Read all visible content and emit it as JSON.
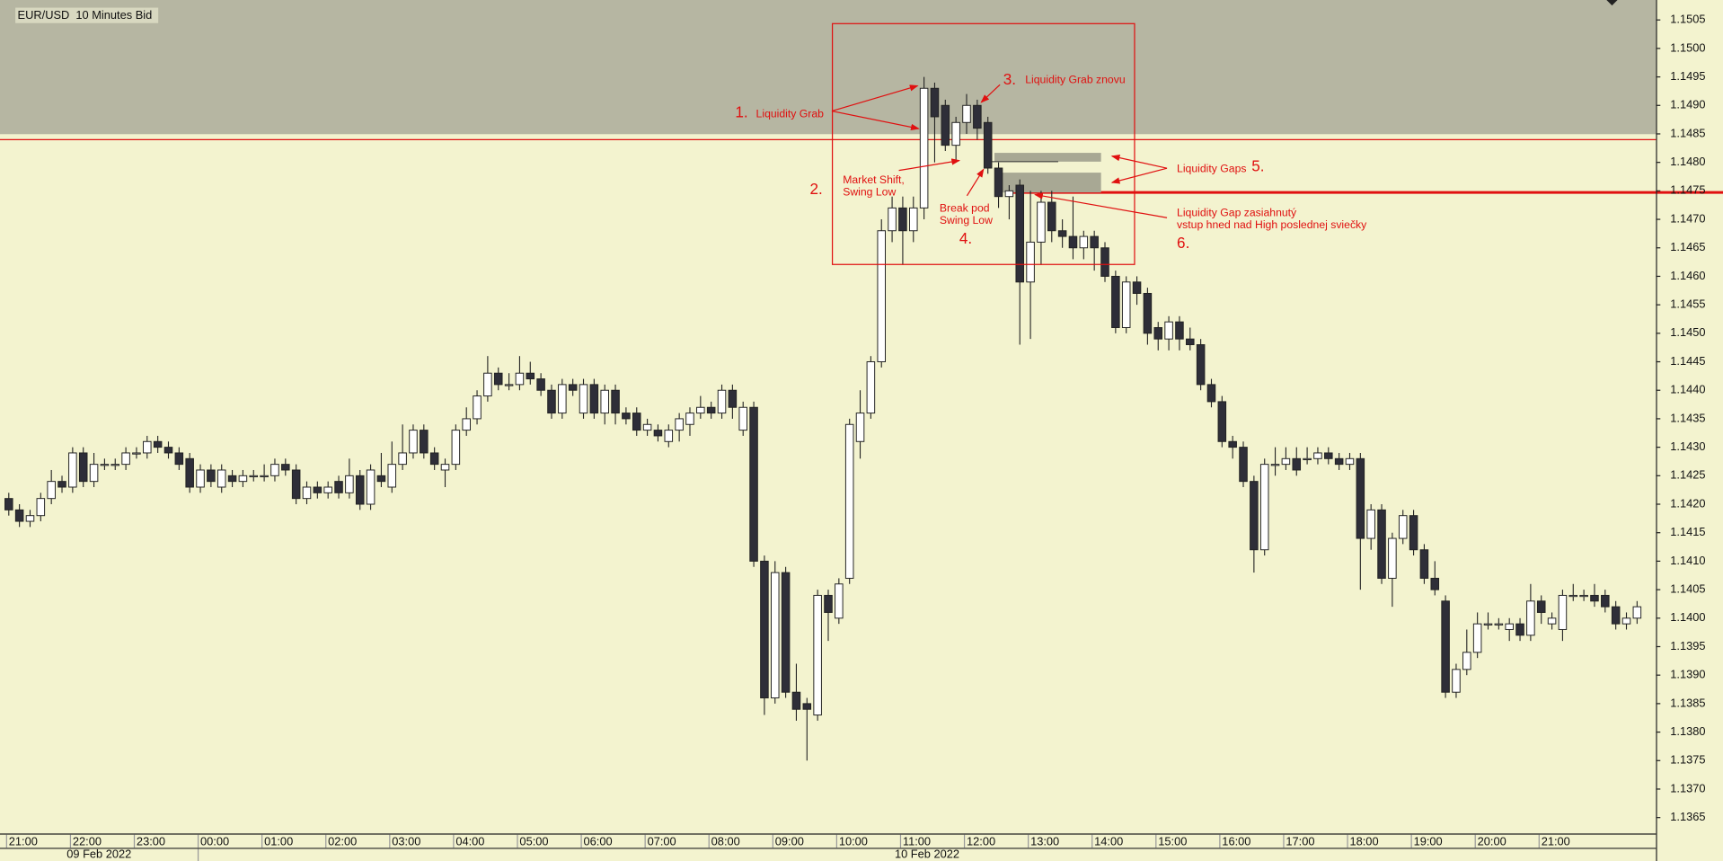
{
  "chart_data": {
    "type": "candlestick",
    "title": "EUR/USD  10 Minutes Bid",
    "x": [
      "21:00",
      null,
      null,
      null,
      null,
      null,
      "22:00",
      null,
      null,
      null,
      null,
      null,
      "23:00",
      null,
      null,
      null,
      null,
      null,
      "00:00",
      null,
      null,
      null,
      null,
      null,
      "01:00",
      null,
      null,
      null,
      null,
      null,
      "02:00",
      null,
      null,
      null,
      null,
      null,
      "03:00",
      null,
      null,
      null,
      null,
      null,
      "04:00",
      null,
      null,
      null,
      null,
      null,
      "05:00",
      null,
      null,
      null,
      null,
      null,
      "06:00",
      null,
      null,
      null,
      null,
      null,
      "07:00",
      null,
      null,
      null,
      null,
      null,
      "08:00",
      null,
      null,
      null,
      null,
      null,
      "09:00",
      null,
      null,
      null,
      null,
      null,
      "10:00",
      null,
      null,
      null,
      null,
      null,
      "11:00",
      null,
      null,
      null,
      null,
      null,
      "12:00",
      null,
      null,
      null,
      null,
      null,
      "13:00",
      null,
      null,
      null,
      null,
      null,
      "14:00",
      null,
      null,
      null,
      null,
      null,
      "15:00",
      null,
      null,
      null,
      null,
      null,
      "16:00",
      null,
      null,
      null,
      null,
      null,
      "17:00",
      null,
      null,
      null,
      null,
      null,
      "18:00",
      null,
      null,
      null,
      null,
      null,
      "19:00",
      null,
      null,
      null,
      null,
      null,
      "20:00",
      null,
      null,
      null,
      null,
      null,
      "21:00",
      null,
      null,
      null,
      null,
      null,
      null,
      null,
      null,
      null
    ],
    "dates": [
      "09 Feb 2022",
      "10 Feb 2022"
    ],
    "open": [
      1.1421,
      1.1419,
      1.1417,
      1.1418,
      1.1421,
      1.1424,
      1.1423,
      1.1429,
      1.1424,
      1.1427,
      1.1427,
      1.1427,
      1.1429,
      1.1429,
      1.1431,
      1.143,
      1.1429,
      1.1428,
      1.1423,
      1.1426,
      1.1423,
      1.1425,
      1.1424,
      1.1425,
      1.1425,
      1.1425,
      1.1427,
      1.1426,
      1.1421,
      1.1423,
      1.1422,
      1.1424,
      1.1422,
      1.1425,
      1.142,
      1.1425,
      1.1423,
      1.1427,
      1.1429,
      1.1433,
      1.1429,
      1.1426,
      1.1427,
      1.1433,
      1.1435,
      1.1439,
      1.1443,
      1.1441,
      1.1441,
      1.1443,
      1.1442,
      1.144,
      1.1436,
      1.1441,
      1.1436,
      1.1441,
      1.1436,
      1.144,
      1.1436,
      1.1436,
      1.1433,
      1.1433,
      1.1431,
      1.1433,
      1.1434,
      1.1436,
      1.1437,
      1.1436,
      1.144,
      1.1433,
      1.1437,
      1.141,
      1.1386,
      1.1408,
      1.1387,
      1.1385,
      1.1383,
      1.1404,
      1.14,
      1.1407,
      1.1431,
      1.1436,
      1.1445,
      1.1468,
      1.1472,
      1.1468,
      1.1472,
      1.1493,
      1.149,
      1.1483,
      1.1487,
      1.149,
      1.1487,
      1.1479,
      1.1474,
      1.1476,
      1.1459,
      1.1466,
      1.1473,
      1.1468,
      1.1467,
      1.1465,
      1.1467,
      1.1465,
      1.146,
      1.1451,
      1.1459,
      1.1457,
      1.1451,
      1.1449,
      1.1452,
      1.1449,
      1.1448,
      1.1441,
      1.1438,
      1.1431,
      1.143,
      1.1424,
      1.1412,
      1.1427,
      1.1427,
      1.1428,
      1.1428,
      1.1428,
      1.1429,
      1.1428,
      1.1427,
      1.1428,
      1.1414,
      1.1419,
      1.1407,
      1.1414,
      1.1418,
      1.1412,
      1.1407,
      1.1403,
      1.1387,
      1.1391,
      1.1394,
      1.1399,
      1.1399,
      1.1398,
      1.1399,
      1.1397,
      1.1403,
      1.1399,
      1.1398,
      1.1404,
      1.1404,
      1.1404,
      1.1404,
      1.1402,
      1.1399,
      1.14
    ],
    "high": [
      1.1422,
      1.142,
      1.1419,
      1.1422,
      1.1426,
      1.1425,
      1.143,
      1.143,
      1.1429,
      1.1428,
      1.1428,
      1.143,
      1.143,
      1.1432,
      1.1432,
      1.1431,
      1.143,
      1.1429,
      1.1427,
      1.1427,
      1.1427,
      1.1426,
      1.1426,
      1.1426,
      1.1427,
      1.1428,
      1.1428,
      1.1427,
      1.1424,
      1.1424,
      1.1424,
      1.1425,
      1.1428,
      1.1426,
      1.1427,
      1.1429,
      1.1431,
      1.1434,
      1.1434,
      1.1434,
      1.143,
      1.1428,
      1.1434,
      1.1437,
      1.144,
      1.1446,
      1.1444,
      1.1443,
      1.1446,
      1.1445,
      1.1443,
      1.1441,
      1.1442,
      1.1442,
      1.1442,
      1.1442,
      1.1441,
      1.1441,
      1.1437,
      1.1437,
      1.1435,
      1.1434,
      1.1434,
      1.1436,
      1.1437,
      1.1439,
      1.1438,
      1.1441,
      1.1441,
      1.1438,
      1.1438,
      1.1411,
      1.141,
      1.1409,
      1.1392,
      1.1386,
      1.1405,
      1.1405,
      1.1407,
      1.1435,
      1.144,
      1.1446,
      1.147,
      1.1474,
      1.1474,
      1.1474,
      1.1495,
      1.1494,
      1.1491,
      1.1488,
      1.1492,
      1.1491,
      1.1488,
      1.148,
      1.1476,
      1.1477,
      1.1475,
      1.1475,
      1.1475,
      1.147,
      1.1474,
      1.1468,
      1.1468,
      1.1466,
      1.1461,
      1.146,
      1.146,
      1.1458,
      1.1452,
      1.1453,
      1.1453,
      1.1451,
      1.1449,
      1.1442,
      1.1439,
      1.1432,
      1.1431,
      1.1425,
      1.1428,
      1.143,
      1.143,
      1.143,
      1.143,
      1.143,
      1.143,
      1.1429,
      1.1429,
      1.1429,
      1.142,
      1.142,
      1.1415,
      1.1419,
      1.1419,
      1.1413,
      1.141,
      1.1404,
      1.1392,
      1.1398,
      1.1401,
      1.1401,
      1.14,
      1.14,
      1.14,
      1.1406,
      1.1404,
      1.1401,
      1.1405,
      1.1406,
      1.1405,
      1.1406,
      1.1405,
      1.1403,
      1.1401,
      1.1403
    ],
    "low": [
      1.1418,
      1.1416,
      1.1416,
      1.1417,
      1.142,
      1.1422,
      1.1422,
      1.1423,
      1.1423,
      1.1426,
      1.1426,
      1.1426,
      1.1428,
      1.1428,
      1.1429,
      1.1428,
      1.1426,
      1.1422,
      1.1422,
      1.1423,
      1.1422,
      1.1423,
      1.1423,
      1.1424,
      1.1424,
      1.1424,
      1.1425,
      1.142,
      1.142,
      1.1421,
      1.1421,
      1.1421,
      1.1421,
      1.1419,
      1.1419,
      1.1423,
      1.1422,
      1.1426,
      1.1428,
      1.1428,
      1.1426,
      1.1423,
      1.1426,
      1.1432,
      1.1434,
      1.1438,
      1.144,
      1.144,
      1.144,
      1.1441,
      1.1439,
      1.1435,
      1.1435,
      1.1439,
      1.1435,
      1.1435,
      1.1434,
      1.1434,
      1.1434,
      1.1432,
      1.1432,
      1.1431,
      1.143,
      1.1431,
      1.1432,
      1.1435,
      1.1435,
      1.1435,
      1.1435,
      1.1432,
      1.1409,
      1.1383,
      1.1385,
      1.1386,
      1.1382,
      1.1375,
      1.1382,
      1.1396,
      1.1399,
      1.1406,
      1.1428,
      1.1435,
      1.1444,
      1.1466,
      1.1462,
      1.1466,
      1.147,
      1.148,
      1.1482,
      1.148,
      1.1485,
      1.1484,
      1.1478,
      1.1472,
      1.147,
      1.1448,
      1.1449,
      1.1462,
      1.1466,
      1.1465,
      1.1463,
      1.1463,
      1.1461,
      1.1459,
      1.145,
      1.145,
      1.1455,
      1.1448,
      1.1447,
      1.1447,
      1.1447,
      1.1447,
      1.144,
      1.1437,
      1.143,
      1.1428,
      1.1423,
      1.1408,
      1.1411,
      1.1425,
      1.1426,
      1.1425,
      1.1427,
      1.1427,
      1.1427,
      1.1426,
      1.1426,
      1.1405,
      1.1412,
      1.1406,
      1.1402,
      1.1413,
      1.1411,
      1.1406,
      1.1404,
      1.1386,
      1.1386,
      1.139,
      1.1393,
      1.1398,
      1.1398,
      1.1396,
      1.1396,
      1.1396,
      1.1399,
      1.1398,
      1.1396,
      1.1403,
      1.1403,
      1.1402,
      1.1401,
      1.1398,
      1.1398,
      1.1399
    ],
    "close": [
      1.1419,
      1.1417,
      1.1418,
      1.1421,
      1.1424,
      1.1423,
      1.1429,
      1.1424,
      1.1427,
      1.1427,
      1.1427,
      1.1429,
      1.1429,
      1.1431,
      1.143,
      1.1429,
      1.1427,
      1.1423,
      1.1426,
      1.1424,
      1.1426,
      1.1424,
      1.1425,
      1.1425,
      1.1425,
      1.1427,
      1.1426,
      1.1421,
      1.1423,
      1.1422,
      1.1423,
      1.1422,
      1.1425,
      1.142,
      1.1426,
      1.1424,
      1.1427,
      1.1429,
      1.1433,
      1.1429,
      1.1427,
      1.1427,
      1.1433,
      1.1435,
      1.1439,
      1.1443,
      1.1441,
      1.1441,
      1.1443,
      1.1442,
      1.144,
      1.1436,
      1.1441,
      1.144,
      1.1441,
      1.1436,
      1.144,
      1.1436,
      1.1435,
      1.1433,
      1.1434,
      1.1432,
      1.1433,
      1.1435,
      1.1436,
      1.1437,
      1.1436,
      1.144,
      1.1437,
      1.1437,
      1.141,
      1.1386,
      1.1408,
      1.1387,
      1.1384,
      1.1384,
      1.1404,
      1.1401,
      1.1406,
      1.1434,
      1.1436,
      1.1445,
      1.1468,
      1.1472,
      1.1468,
      1.1472,
      1.1493,
      1.1488,
      1.1483,
      1.1487,
      1.149,
      1.1486,
      1.1479,
      1.1474,
      1.1475,
      1.1459,
      1.1466,
      1.1473,
      1.1468,
      1.1467,
      1.1465,
      1.1467,
      1.1465,
      1.146,
      1.1451,
      1.1459,
      1.1457,
      1.145,
      1.1449,
      1.1452,
      1.1449,
      1.1448,
      1.1441,
      1.1438,
      1.1431,
      1.143,
      1.1424,
      1.1412,
      1.1427,
      1.1427,
      1.1428,
      1.1426,
      1.1428,
      1.1429,
      1.1428,
      1.1427,
      1.1428,
      1.1414,
      1.1419,
      1.1407,
      1.1414,
      1.1418,
      1.1412,
      1.1407,
      1.1405,
      1.1387,
      1.1391,
      1.1394,
      1.1399,
      1.1399,
      1.1399,
      1.1399,
      1.1397,
      1.1403,
      1.1401,
      1.14,
      1.1404,
      1.1404,
      1.1404,
      1.1403,
      1.1402,
      1.1399,
      1.14,
      1.1402
    ],
    "ylim": [
      1.13622,
      1.15085
    ],
    "yticks": [
      {
        "value": 1.1505,
        "label": "1.1505"
      },
      {
        "value": 1.15,
        "label": "1.1500"
      },
      {
        "value": 1.1495,
        "label": "1.1495"
      },
      {
        "value": 1.149,
        "label": "1.1490"
      },
      {
        "value": 1.1485,
        "label": "1.1485"
      },
      {
        "value": 1.148,
        "label": "1.1480"
      },
      {
        "value": 1.1475,
        "label": "1.1475"
      },
      {
        "value": 1.147,
        "label": "1.1470"
      },
      {
        "value": 1.1465,
        "label": "1.1465"
      },
      {
        "value": 1.146,
        "label": "1.1460"
      },
      {
        "value": 1.1455,
        "label": "1.1455"
      },
      {
        "value": 1.145,
        "label": "1.1450"
      },
      {
        "value": 1.1445,
        "label": "1.1445"
      },
      {
        "value": 1.144,
        "label": "1.1440"
      },
      {
        "value": 1.1435,
        "label": "1.1435"
      },
      {
        "value": 1.143,
        "label": "1.1430"
      },
      {
        "value": 1.1425,
        "label": "1.1425"
      },
      {
        "value": 1.142,
        "label": "1.1420"
      },
      {
        "value": 1.1415,
        "label": "1.1415"
      },
      {
        "value": 1.141,
        "label": "1.1410"
      },
      {
        "value": 1.1405,
        "label": "1.1405"
      },
      {
        "value": 1.14,
        "label": "1.1400"
      },
      {
        "value": 1.1395,
        "label": "1.1395"
      },
      {
        "value": 1.139,
        "label": "1.1390"
      },
      {
        "value": 1.1385,
        "label": "1.1385"
      },
      {
        "value": 1.138,
        "label": "1.1380"
      },
      {
        "value": 1.1375,
        "label": "1.1375"
      },
      {
        "value": 1.137,
        "label": "1.1370"
      },
      {
        "value": 1.1365,
        "label": "1.1365"
      }
    ],
    "up_color": "#ffffff",
    "down_color": "#2e2e38",
    "grid": false
  },
  "annotations": [
    "1.",
    "Liquidity Grab",
    "3.",
    "Liquidity Grab znovu",
    "2.",
    "Market Shift,",
    "Swing Low",
    "Break pod",
    "Swing Low",
    "4.",
    "Liquidity Gaps",
    "5.",
    "Liquidity Gap zasiahnutý",
    "vstup hned nad High poslednej sviečky",
    "6."
  ]
}
